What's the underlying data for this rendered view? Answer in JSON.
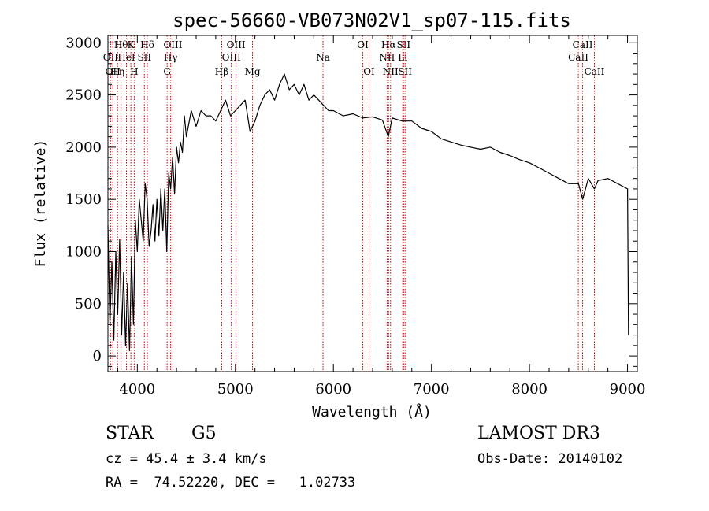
{
  "chart_data": {
    "type": "line",
    "title": "spec-56660-VB073N02V1_sp07-115.fits",
    "xlabel": "Wavelength (Å)",
    "ylabel": "Flux (relative)",
    "xlim": [
      3700,
      9100
    ],
    "ylim": [
      -150,
      3070
    ],
    "xticks": [
      4000,
      5000,
      6000,
      7000,
      8000,
      9000
    ],
    "yticks": [
      0,
      500,
      1000,
      1500,
      2000,
      2500,
      3000
    ],
    "grid": false,
    "series": [
      {
        "line_color": "#000000",
        "x": [
          3700,
          3720,
          3740,
          3760,
          3780,
          3800,
          3820,
          3840,
          3860,
          3880,
          3900,
          3920,
          3940,
          3960,
          3980,
          4000,
          4020,
          4040,
          4060,
          4080,
          4100,
          4120,
          4140,
          4160,
          4180,
          4200,
          4220,
          4240,
          4260,
          4280,
          4300,
          4320,
          4340,
          4360,
          4380,
          4400,
          4420,
          4440,
          4460,
          4480,
          4500,
          4550,
          4600,
          4650,
          4700,
          4750,
          4800,
          4850,
          4900,
          4950,
          5000,
          5050,
          5100,
          5150,
          5200,
          5250,
          5300,
          5350,
          5400,
          5450,
          5500,
          5550,
          5600,
          5650,
          5700,
          5750,
          5800,
          5850,
          5900,
          5950,
          6000,
          6100,
          6200,
          6300,
          6400,
          6500,
          6560,
          6600,
          6700,
          6800,
          6900,
          7000,
          7100,
          7200,
          7300,
          7400,
          7500,
          7600,
          7700,
          7800,
          7900,
          8000,
          8100,
          8200,
          8300,
          8400,
          8500,
          8542,
          8600,
          8662,
          8700,
          8800,
          8900,
          9000,
          9010
        ],
        "y": [
          1250,
          300,
          900,
          150,
          1000,
          400,
          1120,
          200,
          800,
          100,
          700,
          50,
          950,
          300,
          1300,
          1000,
          1500,
          1300,
          1100,
          1650,
          1500,
          1050,
          1200,
          1450,
          1100,
          1500,
          1150,
          1600,
          1200,
          1600,
          1000,
          1750,
          1600,
          1900,
          1550,
          2000,
          1850,
          2050,
          1950,
          2300,
          2100,
          2350,
          2200,
          2350,
          2300,
          2300,
          2250,
          2350,
          2450,
          2300,
          2350,
          2400,
          2450,
          2150,
          2250,
          2400,
          2500,
          2550,
          2450,
          2600,
          2700,
          2550,
          2600,
          2500,
          2600,
          2450,
          2500,
          2450,
          2400,
          2350,
          2350,
          2300,
          2320,
          2280,
          2290,
          2260,
          2100,
          2280,
          2250,
          2250,
          2180,
          2150,
          2080,
          2050,
          2020,
          2000,
          1980,
          2000,
          1950,
          1920,
          1880,
          1850,
          1800,
          1750,
          1700,
          1650,
          1650,
          1500,
          1700,
          1600,
          1680,
          1700,
          1650,
          1600,
          200
        ]
      }
    ],
    "line_marker_color": "#cc0000",
    "line_markers": [
      {
        "wavelength": 3727,
        "label": "OII",
        "row": 2
      },
      {
        "wavelength": 3750,
        "label": "OII",
        "row": 3
      },
      {
        "wavelength": 3798,
        "label": "Hη",
        "row": 3
      },
      {
        "wavelength": 3834,
        "label": "Hθ",
        "row": 1
      },
      {
        "wavelength": 3889,
        "label": "HeI",
        "row": 2
      },
      {
        "wavelength": 3934,
        "label": "K",
        "row": 1
      },
      {
        "wavelength": 3968,
        "label": "H",
        "row": 3
      },
      {
        "wavelength": 4072,
        "label": "SII",
        "row": 2
      },
      {
        "wavelength": 4102,
        "label": "Hδ",
        "row": 1
      },
      {
        "wavelength": 4304,
        "label": "G",
        "row": 3
      },
      {
        "wavelength": 4340,
        "label": "Hγ",
        "row": 2
      },
      {
        "wavelength": 4363,
        "label": "OIII",
        "row": 1
      },
      {
        "wavelength": 4861,
        "label": "Hβ",
        "row": 3
      },
      {
        "wavelength": 4959,
        "label": "OIII",
        "row": 2
      },
      {
        "wavelength": 5007,
        "label": "OIII",
        "row": 1
      },
      {
        "wavelength": 5175,
        "label": "Mg",
        "row": 3
      },
      {
        "wavelength": 5894,
        "label": "Na",
        "row": 2
      },
      {
        "wavelength": 6300,
        "label": "OI",
        "row": 1
      },
      {
        "wavelength": 6364,
        "label": "OI",
        "row": 3
      },
      {
        "wavelength": 6548,
        "label": "NII",
        "row": 2
      },
      {
        "wavelength": 6563,
        "label": "Hα",
        "row": 1
      },
      {
        "wavelength": 6583,
        "label": "NII",
        "row": 3
      },
      {
        "wavelength": 6707,
        "label": "Li",
        "row": 2
      },
      {
        "wavelength": 6716,
        "label": "SII",
        "row": 1
      },
      {
        "wavelength": 6731,
        "label": "SII",
        "row": 3
      },
      {
        "wavelength": 8498,
        "label": "CaII",
        "row": 2
      },
      {
        "wavelength": 8542,
        "label": "CaII",
        "row": 1
      },
      {
        "wavelength": 8662,
        "label": "CaII",
        "row": 3
      }
    ]
  },
  "info": {
    "object_class": "STAR",
    "subclass": "G5",
    "survey": "LAMOST DR3",
    "redshift_text": "cz = 45.4 ± 3.4 km/s",
    "obs_date_text": "Obs-Date: 20140102",
    "coords_text": "RA =  74.52220, DEC =   1.02733"
  }
}
